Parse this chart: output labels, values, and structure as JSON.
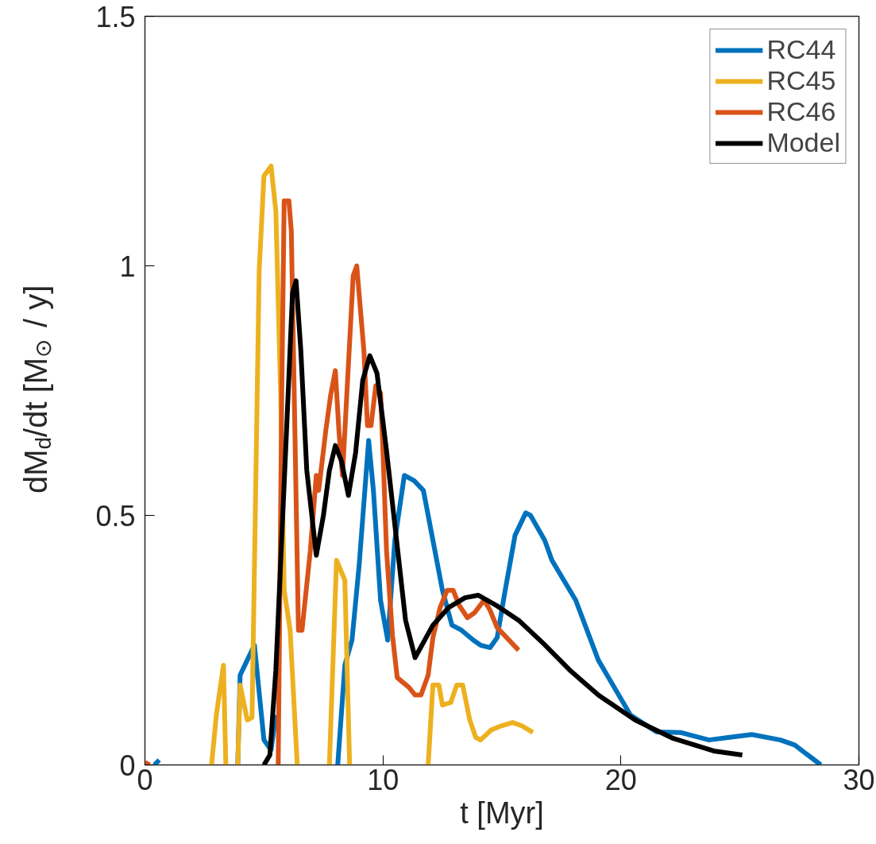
{
  "chart_data": {
    "type": "line",
    "xlabel": "t [Myr]",
    "ylabel": "dM$_{d}$/dt [M$_{⊙}$ / y]",
    "xlim": [
      0,
      30
    ],
    "xticks": [
      0,
      10,
      20,
      30
    ],
    "ylim": [
      0,
      1.5
    ],
    "yticks": [
      0,
      0.5,
      1,
      1.5
    ],
    "grid": false,
    "legend": "top right",
    "line_style": "solid",
    "series": [
      {
        "name": "RC44",
        "color": "#0072bd",
        "x": [
          0.4,
          0.6,
          null,
          3.9,
          4.0,
          4.2,
          4.6,
          5.0,
          5.3,
          5.5,
          null,
          8.1,
          8.4,
          8.7,
          9.0,
          9.4,
          9.6,
          9.9,
          10.2,
          10.5,
          10.9,
          11.3,
          11.7,
          12.1,
          12.5,
          12.9,
          13.3,
          13.8,
          14.1,
          14.5,
          14.8,
          15.1,
          15.55,
          16.0,
          16.2,
          16.8,
          17.1,
          18.1,
          19.05,
          20.4,
          21.5,
          22.5,
          23.7,
          24.5,
          25.5,
          26.7,
          27.3,
          28.4
        ],
        "values": [
          0,
          0.01,
          null,
          0,
          0.18,
          0.2,
          0.24,
          0.05,
          0.03,
          0.1,
          null,
          0,
          0.2,
          0.25,
          0.4,
          0.65,
          0.55,
          0.33,
          0.25,
          0.45,
          0.58,
          0.57,
          0.55,
          0.45,
          0.35,
          0.28,
          0.27,
          0.25,
          0.24,
          0.235,
          0.255,
          0.34,
          0.46,
          0.505,
          0.5,
          0.45,
          0.41,
          0.33,
          0.21,
          0.1,
          0.066,
          0.065,
          0.05,
          0.055,
          0.061,
          0.05,
          0.04,
          0
        ]
      },
      {
        "name": "RC45",
        "color": "#edb120",
        "x": [
          2.8,
          3.0,
          3.3,
          3.4,
          null,
          3.9,
          4.0,
          4.3,
          4.5,
          4.8,
          5.0,
          5.3,
          5.5,
          5.7,
          5.85,
          6.1,
          6.4,
          null,
          7.75,
          8.05,
          8.4,
          8.6,
          null,
          11.9,
          12.1,
          12.35,
          12.5,
          12.85,
          13.1,
          13.35,
          13.65,
          13.9,
          14.1,
          14.55,
          14.95,
          15.45,
          15.85,
          16.3
        ],
        "values": [
          0,
          0.1,
          0.2,
          0,
          null,
          0,
          0.16,
          0.09,
          0.095,
          0.99,
          1.18,
          1.2,
          1.11,
          0.75,
          0.35,
          0.27,
          0,
          null,
          0,
          0.41,
          0.37,
          0,
          null,
          0,
          0.16,
          0.16,
          0.12,
          0.125,
          0.16,
          0.16,
          0.09,
          0.055,
          0.05,
          0.07,
          0.078,
          0.085,
          0.078,
          0.065
        ]
      },
      {
        "name": "RC46",
        "color": "#d95319",
        "x": [
          0.0,
          0.2,
          null,
          5.6,
          5.75,
          5.85,
          6.05,
          6.15,
          6.3,
          6.45,
          6.6,
          6.95,
          7.2,
          7.3,
          7.6,
          7.8,
          8.0,
          8.15,
          8.3,
          8.75,
          8.9,
          9.2,
          9.35,
          9.5,
          9.7,
          9.9,
          10.0,
          10.15,
          10.4,
          10.6,
          10.85,
          11.1,
          11.35,
          11.6,
          11.9,
          12.1,
          12.4,
          12.7,
          12.95,
          13.2,
          13.55,
          13.85,
          14.25,
          14.5,
          14.8,
          15.2,
          15.7
        ],
        "values": [
          0.005,
          0,
          null,
          0,
          0.75,
          1.13,
          1.13,
          1.07,
          0.67,
          0.27,
          0.27,
          0.43,
          0.58,
          0.55,
          0.67,
          0.74,
          0.79,
          0.67,
          0.58,
          0.98,
          1.0,
          0.83,
          0.68,
          0.68,
          0.76,
          0.745,
          0.63,
          0.43,
          0.26,
          0.175,
          0.165,
          0.155,
          0.14,
          0.14,
          0.18,
          0.255,
          0.315,
          0.35,
          0.35,
          0.32,
          0.295,
          0.305,
          0.33,
          0.31,
          0.275,
          0.255,
          0.23
        ]
      },
      {
        "name": "Model",
        "color": "#000000",
        "x": [
          5.0,
          5.25,
          5.5,
          5.95,
          6.2,
          6.35,
          6.55,
          6.8,
          7.2,
          7.5,
          7.75,
          8.0,
          8.25,
          8.55,
          8.85,
          9.15,
          9.45,
          9.75,
          10.15,
          10.95,
          11.35,
          12.1,
          12.75,
          13.45,
          14.0,
          14.75,
          15.7,
          16.75,
          17.85,
          19.05,
          20.6,
          22.2,
          23.9,
          25.1
        ],
        "values": [
          0,
          0.02,
          0.19,
          0.67,
          0.945,
          0.97,
          0.83,
          0.59,
          0.42,
          0.5,
          0.59,
          0.64,
          0.61,
          0.54,
          0.625,
          0.77,
          0.82,
          0.785,
          0.63,
          0.29,
          0.215,
          0.28,
          0.315,
          0.335,
          0.34,
          0.32,
          0.29,
          0.243,
          0.19,
          0.14,
          0.09,
          0.053,
          0.028,
          0.02
        ]
      }
    ]
  }
}
